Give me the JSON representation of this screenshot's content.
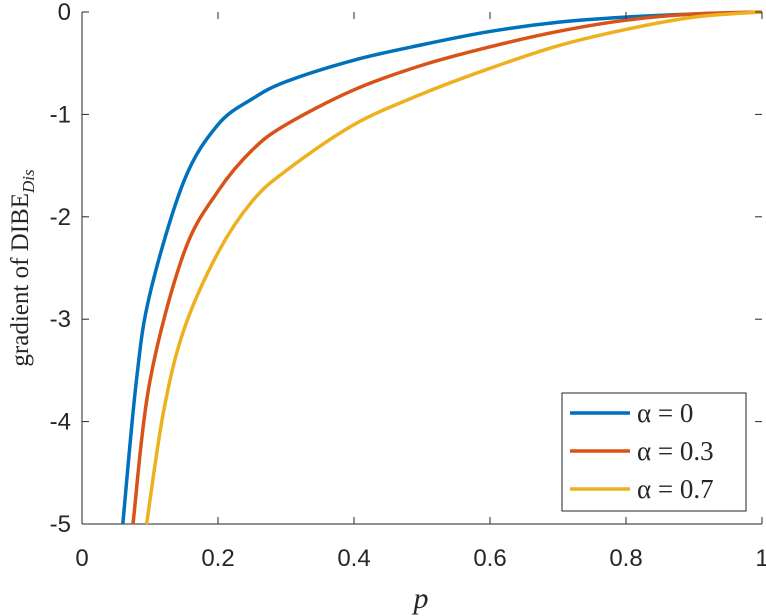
{
  "chart_data": {
    "type": "line",
    "xlabel": "p",
    "ylabel": {
      "main": "gradient of DIBE",
      "subscript": "Dis"
    },
    "xlim": [
      0,
      1
    ],
    "ylim": [
      -5,
      0
    ],
    "x_ticks": [
      0,
      0.2,
      0.4,
      0.6,
      0.8,
      1
    ],
    "x_tick_labels": [
      "0",
      "0.2",
      "0.4",
      "0.6",
      "0.8",
      "1"
    ],
    "y_ticks": [
      0,
      -1,
      -2,
      -3,
      -4,
      -5
    ],
    "y_tick_labels": [
      "0",
      "-1",
      "-2",
      "-3",
      "-4",
      "-5"
    ],
    "grid": false,
    "legend_position": "bottom-right",
    "series": [
      {
        "name": "α = 0",
        "alpha": 0,
        "color": "#0072BD",
        "points": [
          [
            0.06,
            -5.0
          ],
          [
            0.08,
            -3.6
          ],
          [
            0.1,
            -2.75
          ],
          [
            0.15,
            -1.65
          ],
          [
            0.2,
            -1.1
          ],
          [
            0.25,
            -0.85
          ],
          [
            0.3,
            -0.68
          ],
          [
            0.4,
            -0.47
          ],
          [
            0.5,
            -0.32
          ],
          [
            0.6,
            -0.19
          ],
          [
            0.7,
            -0.1
          ],
          [
            0.8,
            -0.05
          ],
          [
            0.9,
            -0.02
          ],
          [
            1.0,
            0.0
          ]
        ]
      },
      {
        "name": "α = 0.3",
        "alpha": 0.3,
        "color": "#D95319",
        "points": [
          [
            0.075,
            -5.0
          ],
          [
            0.1,
            -3.6
          ],
          [
            0.15,
            -2.35
          ],
          [
            0.2,
            -1.75
          ],
          [
            0.25,
            -1.35
          ],
          [
            0.3,
            -1.1
          ],
          [
            0.4,
            -0.76
          ],
          [
            0.5,
            -0.52
          ],
          [
            0.6,
            -0.34
          ],
          [
            0.7,
            -0.19
          ],
          [
            0.8,
            -0.08
          ],
          [
            0.9,
            -0.02
          ],
          [
            1.0,
            0.0
          ]
        ]
      },
      {
        "name": "α = 0.7",
        "alpha": 0.7,
        "color": "#EDB120",
        "points": [
          [
            0.095,
            -5.0
          ],
          [
            0.12,
            -3.9
          ],
          [
            0.15,
            -3.1
          ],
          [
            0.2,
            -2.35
          ],
          [
            0.25,
            -1.85
          ],
          [
            0.3,
            -1.55
          ],
          [
            0.4,
            -1.1
          ],
          [
            0.5,
            -0.8
          ],
          [
            0.6,
            -0.55
          ],
          [
            0.7,
            -0.33
          ],
          [
            0.8,
            -0.17
          ],
          [
            0.9,
            -0.05
          ],
          [
            1.0,
            0.0
          ]
        ]
      }
    ]
  }
}
